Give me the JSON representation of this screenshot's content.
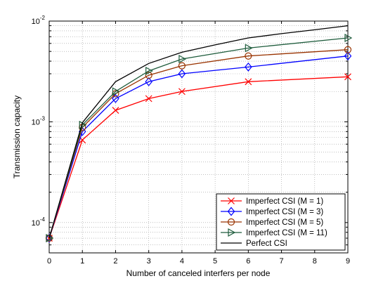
{
  "chart_data": {
    "type": "line",
    "title": "",
    "xlabel": "Number of canceled interfers per node",
    "ylabel": "Transmission capacity",
    "x": [
      0,
      1,
      2,
      3,
      4,
      5,
      6,
      7,
      8,
      9
    ],
    "xlim": [
      0,
      9
    ],
    "ylim": [
      5e-05,
      0.01
    ],
    "yscale": "log",
    "x_ticks": [
      0,
      1,
      2,
      3,
      4,
      5,
      6,
      7,
      8,
      9
    ],
    "y_ticks": [
      {
        "value": 0.0001,
        "base": "10",
        "exp": "-4"
      },
      {
        "value": 0.001,
        "base": "10",
        "exp": "-3"
      },
      {
        "value": 0.01,
        "base": "10",
        "exp": "-2"
      }
    ],
    "grid": true,
    "legend_position": "bottom-right",
    "series": [
      {
        "name": "Imperfect CSI (M = 1)",
        "color": "#ff0000",
        "marker": "x",
        "x": [
          0,
          1,
          2,
          3,
          4,
          6,
          9
        ],
        "values": [
          7e-05,
          0.00066,
          0.0013,
          0.0017,
          0.002,
          0.0025,
          0.0028
        ]
      },
      {
        "name": "Imperfect CSI (M = 3)",
        "color": "#0000ff",
        "marker": "diamond",
        "x": [
          0,
          1,
          2,
          3,
          4,
          6,
          9
        ],
        "values": [
          7e-05,
          0.0008,
          0.0017,
          0.0025,
          0.003,
          0.0035,
          0.0045
        ]
      },
      {
        "name": "Imperfect CSI (M = 5)",
        "color": "#993300",
        "marker": "circle",
        "x": [
          0,
          1,
          2,
          3,
          4,
          6,
          9
        ],
        "values": [
          7e-05,
          0.00088,
          0.0019,
          0.0029,
          0.0036,
          0.0045,
          0.0052
        ]
      },
      {
        "name": "Imperfect CSI (M = 11)",
        "color": "#1e5c3c",
        "marker": "triangle-right",
        "x": [
          0,
          1,
          2,
          3,
          4,
          6,
          9
        ],
        "values": [
          7e-05,
          0.00093,
          0.002,
          0.0032,
          0.0042,
          0.0054,
          0.0068
        ]
      },
      {
        "name": "Perfect CSI",
        "color": "#000000",
        "marker": "none",
        "x": [
          0,
          1,
          2,
          3,
          4,
          5,
          6,
          7,
          8,
          9
        ],
        "values": [
          7e-05,
          0.00098,
          0.0025,
          0.0038,
          0.0049,
          0.0058,
          0.0068,
          0.0075,
          0.0082,
          0.009
        ]
      }
    ]
  }
}
